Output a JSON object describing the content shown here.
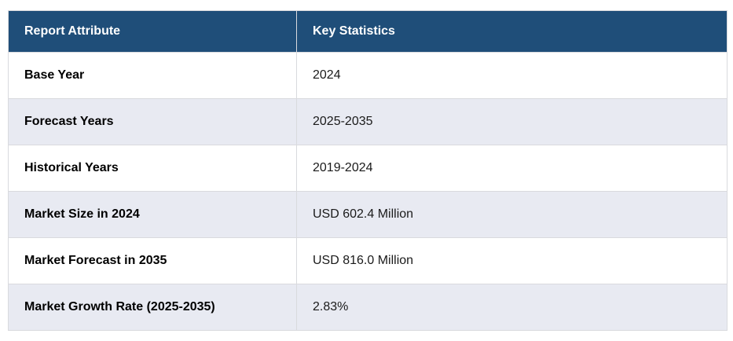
{
  "table": {
    "columns": [
      {
        "label": "Report Attribute"
      },
      {
        "label": "Key Statistics"
      }
    ],
    "rows": [
      {
        "attribute": "Base Year",
        "value": "2024"
      },
      {
        "attribute": "Forecast Years",
        "value": "2025-2035"
      },
      {
        "attribute": "Historical Years",
        "value": "2019-2024"
      },
      {
        "attribute": "Market Size in 2024",
        "value": "USD 602.4 Million"
      },
      {
        "attribute": "Market Forecast in 2035",
        "value": "USD 816.0 Million"
      },
      {
        "attribute": "Market Growth Rate (2025-2035)",
        "value": "2.83%"
      }
    ]
  },
  "colors": {
    "header_bg": "#1f4e79",
    "header_text": "#ffffff",
    "row_bg": "#ffffff",
    "alt_row_bg": "#e8eaf2",
    "border": "#d9dade",
    "attribute_text": "#000000",
    "value_text": "#1a1a1a"
  }
}
